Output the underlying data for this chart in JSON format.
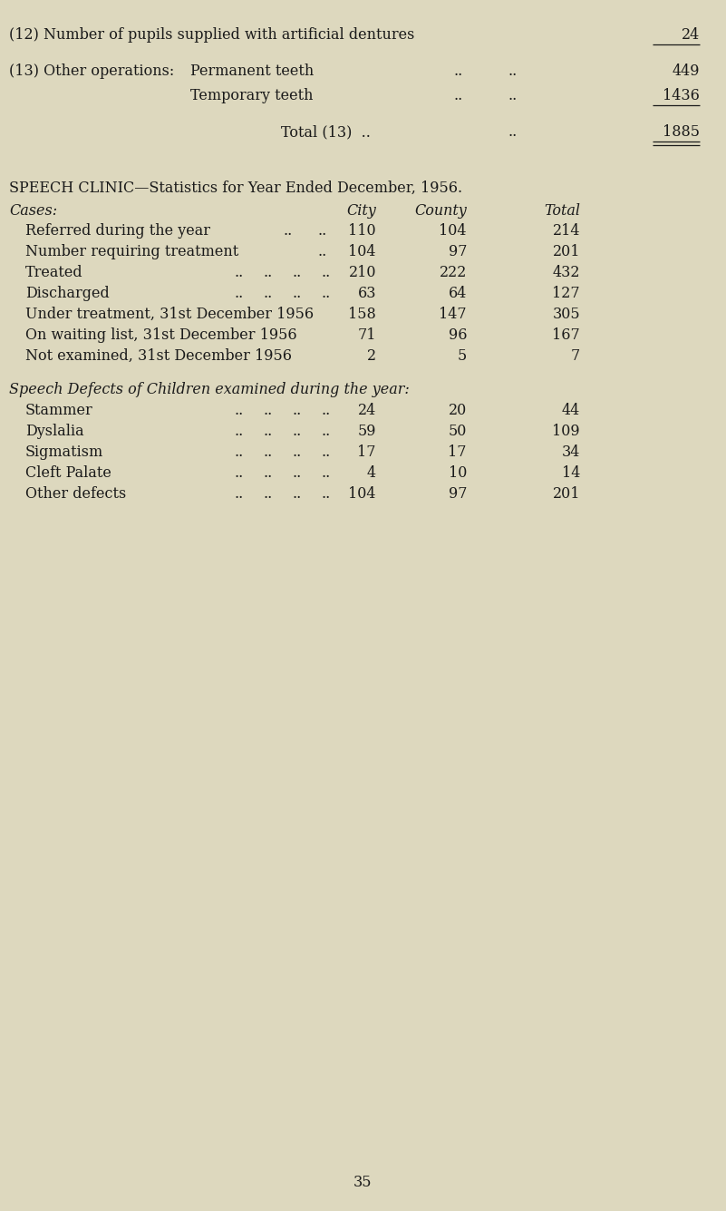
{
  "bg_color": "#ddd8be",
  "text_color": "#1a1a1a",
  "page_number": "35",
  "section1": {
    "line12_label": "(12) Number of pupils supplied with artificial dentures",
    "line12_value": "24",
    "line13_header": "(13) Other operations:",
    "line13_perm_label": "Permanent teeth",
    "line13_perm_dots1": "..",
    "line13_perm_dots2": "..",
    "line13_perm_value": "449",
    "line13_temp_label": "Temporary teeth",
    "line13_temp_dots1": "..",
    "line13_temp_dots2": "..",
    "line13_temp_value": "1436",
    "line13_total_label": "Total (13)  ..",
    "line13_total_dots": "..",
    "line13_total_value": "1885"
  },
  "section2": {
    "title_normal": "SPEECH CLINIC—",
    "title_sc": "Statistics for Year Ended December,",
    "title_end": " 1956.",
    "col_cases": "Cases:",
    "col_city": "City",
    "col_county": "County",
    "col_total": "Total",
    "cases_rows": [
      {
        "label": "Referred during the year",
        "d1": "..",
        "d2": "..",
        "city": "110",
        "county": "104",
        "total": "214",
        "dots": 2
      },
      {
        "label": "Number requiring treatment",
        "d1": "..",
        "d2": "",
        "city": "104",
        "county": "97",
        "total": "201",
        "dots": 1
      },
      {
        "label": "Treated",
        "d1": "..",
        "d2": "..",
        "d3": "..",
        "d4": "..",
        "city": "210",
        "county": "222",
        "total": "432",
        "dots": 4
      },
      {
        "label": "Discharged",
        "d1": "..",
        "d2": "..",
        "d3": "..",
        "d4": "..",
        "city": "63",
        "county": "64",
        "total": "127",
        "dots": 4
      },
      {
        "label": "Under treatment, 31st December 1956",
        "city": "158",
        "county": "147",
        "total": "305",
        "dots": 0
      },
      {
        "label": "On waiting list, 31st December 1956",
        "city": "71",
        "county": "96",
        "total": "167",
        "dots": 0
      },
      {
        "label": "Not examined, 31st December 1956",
        "city": "2",
        "county": "5",
        "total": "7",
        "dots": 0
      }
    ],
    "defects_title": "Speech Defects of Children examined during the year:",
    "defects_rows": [
      {
        "label": "Stammer",
        "city": "24",
        "county": "20",
        "total": "44"
      },
      {
        "label": "Dyslalia",
        "city": "59",
        "county": "50",
        "total": "109"
      },
      {
        "label": "Sigmatism",
        "city": "17",
        "county": "17",
        "total": "34"
      },
      {
        "label": "Cleft Palate",
        "city": "4",
        "county": "10",
        "total": "14"
      },
      {
        "label": "Other defects",
        "city": "104",
        "county": "97",
        "total": "201"
      }
    ]
  }
}
